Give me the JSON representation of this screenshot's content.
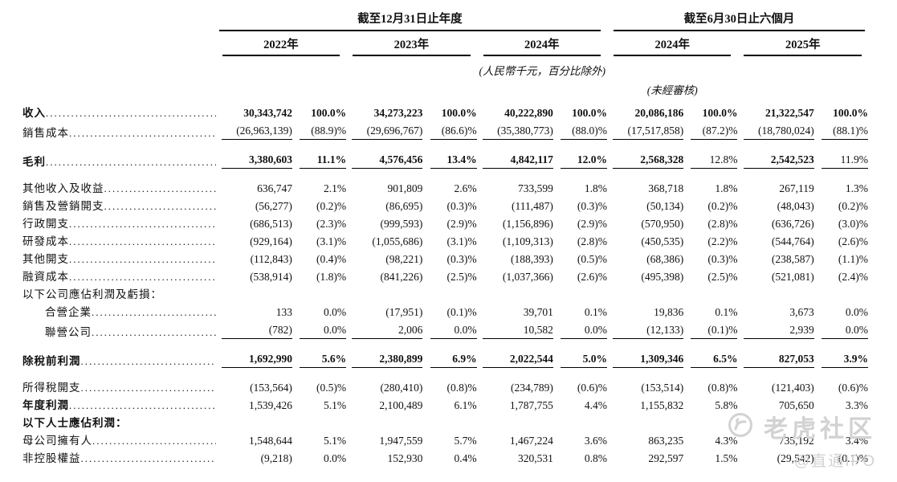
{
  "header": {
    "group_annual": "截至12月31日止年度",
    "group_interim": "截至6月30日止六個月",
    "years": [
      "2022年",
      "2023年",
      "2024年",
      "2024年",
      "2025年"
    ],
    "unit_note": "(人民幣千元，百分比除外)",
    "unaudited_note": "(未經審核)"
  },
  "table": {
    "rows": [
      {
        "label": "收入",
        "label_bold": true,
        "dots": true,
        "gap": false,
        "underline": false,
        "indent": false,
        "values": [
          "30,343,742",
          "100.0%",
          "34,273,223",
          "100.0%",
          "40,222,890",
          "100.0%",
          "20,086,186",
          "100.0%",
          "21,322,547",
          "100.0%"
        ],
        "bold": [
          1,
          1,
          1,
          1,
          1,
          1,
          1,
          1,
          1,
          1
        ]
      },
      {
        "label": "銷售成本",
        "label_bold": false,
        "dots": true,
        "gap": false,
        "underline": true,
        "indent": false,
        "values": [
          "(26,963,139)",
          "(88.9)%",
          "(29,696,767)",
          "(86.6)%",
          "(35,380,773)",
          "(88.0)%",
          "(17,517,858)",
          "(87.2)%",
          "(18,780,024)",
          "(88.1)%"
        ]
      },
      {
        "label": "毛利",
        "label_bold": true,
        "dots": true,
        "gap": true,
        "underline": true,
        "indent": false,
        "values": [
          "3,380,603",
          "11.1%",
          "4,576,456",
          "13.4%",
          "4,842,117",
          "12.0%",
          "2,568,328",
          "12.8%",
          "2,542,523",
          "11.9%"
        ],
        "bold": [
          1,
          1,
          1,
          1,
          1,
          1,
          1,
          0,
          1,
          0
        ]
      },
      {
        "label": "其他收入及收益",
        "label_bold": false,
        "dots": true,
        "gap": true,
        "underline": false,
        "indent": false,
        "values": [
          "636,747",
          "2.1%",
          "901,809",
          "2.6%",
          "733,599",
          "1.8%",
          "368,718",
          "1.8%",
          "267,119",
          "1.3%"
        ]
      },
      {
        "label": "銷售及營銷開支",
        "label_bold": false,
        "dots": true,
        "gap": false,
        "underline": false,
        "indent": false,
        "values": [
          "(56,277)",
          "(0.2)%",
          "(86,695)",
          "(0.3)%",
          "(111,487)",
          "(0.3)%",
          "(50,134)",
          "(0.2)%",
          "(48,043)",
          "(0.2)%"
        ]
      },
      {
        "label": "行政開支",
        "label_bold": false,
        "dots": true,
        "gap": false,
        "underline": false,
        "indent": false,
        "values": [
          "(686,513)",
          "(2.3)%",
          "(999,593)",
          "(2.9)%",
          "(1,156,896)",
          "(2.9)%",
          "(570,950)",
          "(2.8)%",
          "(636,726)",
          "(3.0)%"
        ]
      },
      {
        "label": "研發成本",
        "label_bold": false,
        "dots": true,
        "gap": false,
        "underline": false,
        "indent": false,
        "values": [
          "(929,164)",
          "(3.1)%",
          "(1,055,686)",
          "(3.1)%",
          "(1,109,313)",
          "(2.8)%",
          "(450,535)",
          "(2.2)%",
          "(544,764)",
          "(2.6)%"
        ]
      },
      {
        "label": "其他開支",
        "label_bold": false,
        "dots": true,
        "gap": false,
        "underline": false,
        "indent": false,
        "values": [
          "(112,843)",
          "(0.4)%",
          "(98,221)",
          "(0.3)%",
          "(188,393)",
          "(0.5)%",
          "(68,386)",
          "(0.3)%",
          "(238,587)",
          "(1.1)%"
        ]
      },
      {
        "label": "融資成本",
        "label_bold": false,
        "dots": true,
        "gap": false,
        "underline": false,
        "indent": false,
        "values": [
          "(538,914)",
          "(1.8)%",
          "(841,226)",
          "(2.5)%",
          "(1,037,366)",
          "(2.6)%",
          "(495,398)",
          "(2.5)%",
          "(521,081)",
          "(2.4)%"
        ]
      },
      {
        "label": "以下公司應佔利潤及虧損：",
        "label_bold": false,
        "dots": false,
        "gap": false,
        "underline": false,
        "indent": false,
        "values": [
          "",
          "",
          "",
          "",
          "",
          "",
          "",
          "",
          "",
          ""
        ]
      },
      {
        "label": "合營企業",
        "label_bold": false,
        "dots": true,
        "gap": false,
        "underline": false,
        "indent": true,
        "values": [
          "133",
          "0.0%",
          "(17,951)",
          "(0.1)%",
          "39,701",
          "0.1%",
          "19,836",
          "0.1%",
          "3,673",
          "0.0%"
        ]
      },
      {
        "label": "聯營公司",
        "label_bold": false,
        "dots": true,
        "gap": false,
        "underline": true,
        "indent": true,
        "values": [
          "(782)",
          "0.0%",
          "2,006",
          "0.0%",
          "10,582",
          "0.0%",
          "(12,133)",
          "(0.1)%",
          "2,939",
          "0.0%"
        ]
      },
      {
        "label": "除稅前利潤",
        "label_bold": true,
        "dots": true,
        "gap": true,
        "underline": true,
        "indent": false,
        "values": [
          "1,692,990",
          "5.6%",
          "2,380,899",
          "6.9%",
          "2,022,544",
          "5.0%",
          "1,309,346",
          "6.5%",
          "827,053",
          "3.9%"
        ],
        "bold": [
          1,
          1,
          1,
          1,
          1,
          1,
          1,
          1,
          1,
          1
        ]
      },
      {
        "label": "所得稅開支",
        "label_bold": false,
        "dots": true,
        "gap": true,
        "underline": false,
        "indent": false,
        "values": [
          "(153,564)",
          "(0.5)%",
          "(280,410)",
          "(0.8)%",
          "(234,789)",
          "(0.6)%",
          "(153,514)",
          "(0.8)%",
          "(121,403)",
          "(0.6)%"
        ]
      },
      {
        "label": "年度利潤",
        "label_bold": true,
        "dots": true,
        "gap": false,
        "underline": false,
        "indent": false,
        "values": [
          "1,539,426",
          "5.1%",
          "2,100,489",
          "6.1%",
          "1,787,755",
          "4.4%",
          "1,155,832",
          "5.8%",
          "705,650",
          "3.3%"
        ]
      },
      {
        "label": "以下人士應佔利潤：",
        "label_bold": true,
        "dots": false,
        "gap": false,
        "underline": false,
        "indent": false,
        "values": [
          "",
          "",
          "",
          "",
          "",
          "",
          "",
          "",
          "",
          ""
        ]
      },
      {
        "label": "母公司擁有人",
        "label_bold": false,
        "dots": true,
        "gap": false,
        "underline": false,
        "indent": false,
        "values": [
          "1,548,644",
          "5.1%",
          "1,947,559",
          "5.7%",
          "1,467,224",
          "3.6%",
          "863,235",
          "4.3%",
          "735,192",
          "3.4%"
        ]
      },
      {
        "label": "非控股權益",
        "label_bold": false,
        "dots": true,
        "gap": false,
        "underline": false,
        "indent": false,
        "values": [
          "(9,218)",
          "0.0%",
          "152,930",
          "0.4%",
          "320,531",
          "0.8%",
          "292,597",
          "1.5%",
          "(29,542)",
          "(0.1)%"
        ]
      }
    ]
  },
  "watermark": {
    "community": "老虎社区",
    "handle": "@直通IPO"
  }
}
